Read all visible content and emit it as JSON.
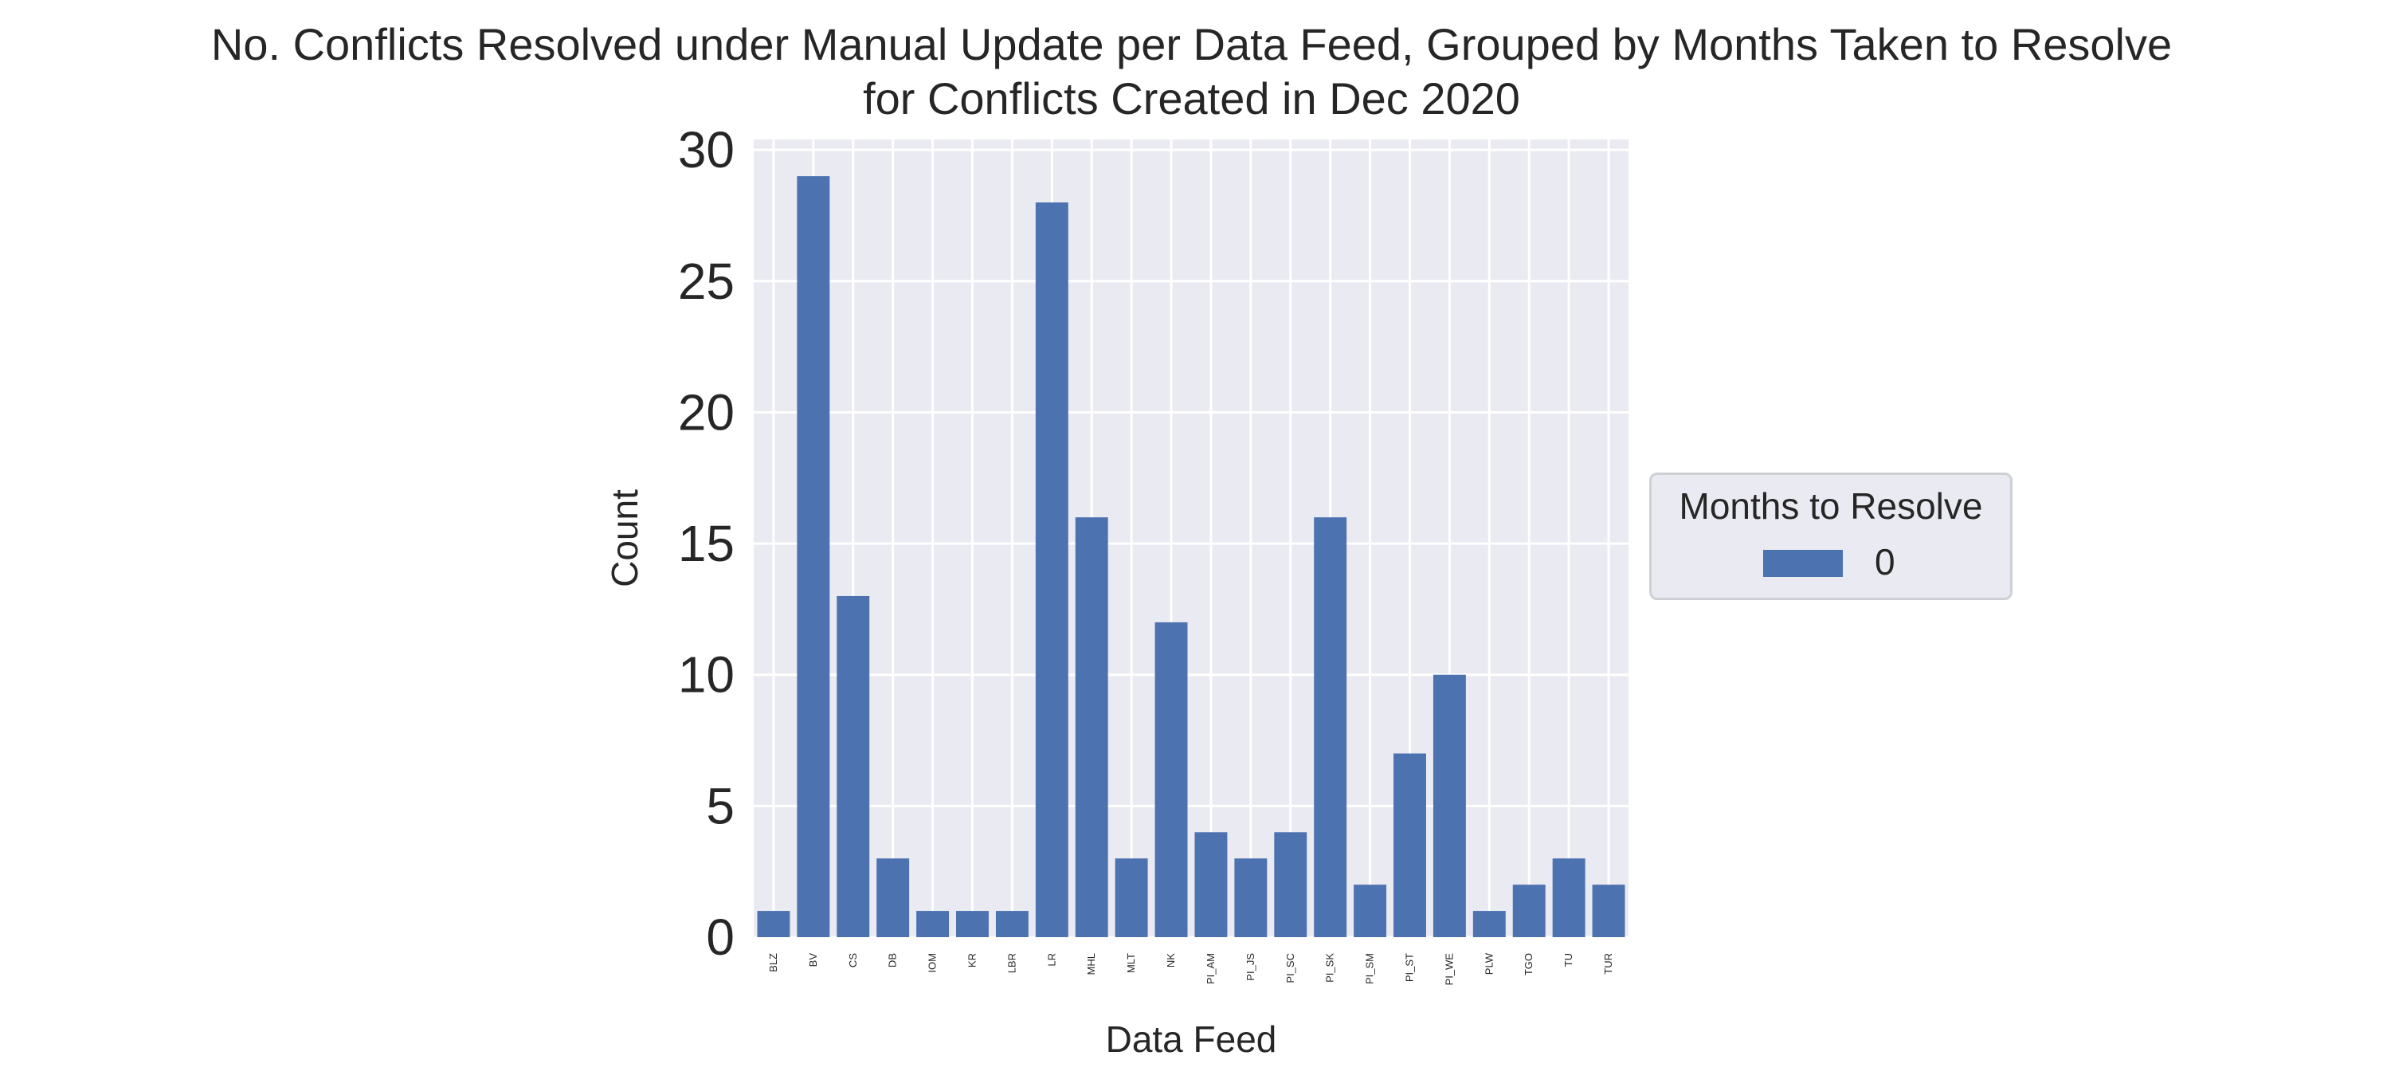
{
  "chart_data": {
    "type": "bar",
    "title": "No. Conflicts Resolved under Manual Update per Data Feed, Grouped by Months Taken to Resolve",
    "subtitle": "for Conflicts Created in Dec 2020",
    "xlabel": "Data Feed",
    "ylabel": "Count",
    "ylim": [
      0,
      30.4
    ],
    "yticks": [
      "0",
      "5",
      "10",
      "15",
      "20",
      "25",
      "30"
    ],
    "grid": true,
    "legend_placement": "center-right outside",
    "legend_title": "Months to Resolve",
    "categories": [
      "BLZ",
      "BV",
      "CS",
      "DB",
      "IOM",
      "KR",
      "LBR",
      "LR",
      "MHL",
      "MLT",
      "NK",
      "PI_AM",
      "PI_JS",
      "PI_SC",
      "PI_SK",
      "PI_SM",
      "PI_ST",
      "PI_WE",
      "PLW",
      "TGO",
      "TU",
      "TUR"
    ],
    "series": [
      {
        "name": "0",
        "color": "#4c72b0",
        "values": [
          1,
          29,
          13,
          3,
          1,
          1,
          1,
          28,
          16,
          3,
          12,
          4,
          3,
          4,
          16,
          2,
          7,
          10,
          1,
          2,
          3,
          2
        ]
      }
    ]
  },
  "colors": {
    "plot_background": "#eaeaf2",
    "grid": "#ffffff",
    "bar": "#4c72b0"
  }
}
